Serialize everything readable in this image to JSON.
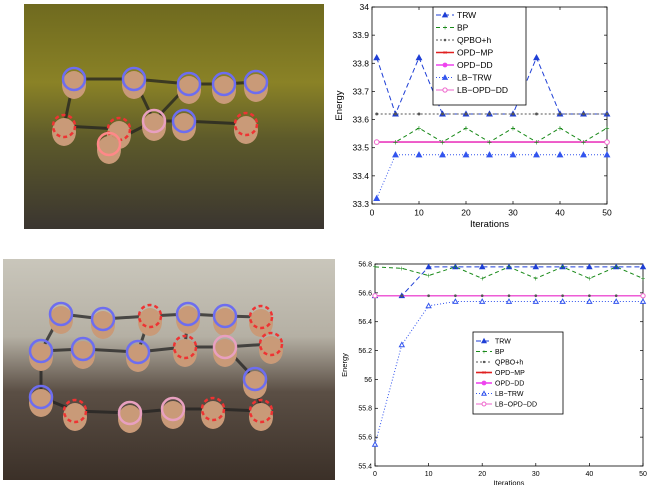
{
  "photos": [
    {
      "id": "top",
      "faces": [
        {
          "x": 50,
          "y": 75,
          "c": "#6d6df0",
          "d": false
        },
        {
          "x": 110,
          "y": 75,
          "c": "#6d6df0",
          "d": false
        },
        {
          "x": 165,
          "y": 80,
          "c": "#6d6df0",
          "d": false
        },
        {
          "x": 200,
          "y": 80,
          "c": "#6d6df0",
          "d": false
        },
        {
          "x": 232,
          "y": 78,
          "c": "#6d6df0",
          "d": false
        },
        {
          "x": 40,
          "y": 122,
          "c": "#e33",
          "d": true
        },
        {
          "x": 95,
          "y": 125,
          "c": "#e33",
          "d": true
        },
        {
          "x": 85,
          "y": 140,
          "c": "#ff8888",
          "d": false
        },
        {
          "x": 130,
          "y": 117,
          "c": "#e8a0c0",
          "d": false
        },
        {
          "x": 160,
          "y": 117,
          "c": "#6d6df0",
          "d": false
        },
        {
          "x": 222,
          "y": 120,
          "c": "#e33",
          "d": true
        }
      ],
      "edges": [
        [
          0,
          1
        ],
        [
          1,
          2
        ],
        [
          2,
          3
        ],
        [
          3,
          4
        ],
        [
          0,
          5
        ],
        [
          5,
          6
        ],
        [
          6,
          7
        ],
        [
          7,
          8
        ],
        [
          8,
          2
        ],
        [
          8,
          9
        ],
        [
          9,
          10
        ],
        [
          1,
          8
        ]
      ]
    },
    {
      "id": "bottom",
      "faces": [
        {
          "x": 58,
          "y": 55,
          "c": "#6d6df0",
          "d": false
        },
        {
          "x": 100,
          "y": 60,
          "c": "#6d6df0",
          "d": false
        },
        {
          "x": 147,
          "y": 57,
          "c": "#e33",
          "d": true
        },
        {
          "x": 185,
          "y": 55,
          "c": "#6d6df0",
          "d": false
        },
        {
          "x": 222,
          "y": 57,
          "c": "#6d6df0",
          "d": false
        },
        {
          "x": 258,
          "y": 58,
          "c": "#e33",
          "d": true
        },
        {
          "x": 38,
          "y": 92,
          "c": "#6d6df0",
          "d": false
        },
        {
          "x": 80,
          "y": 90,
          "c": "#6d6df0",
          "d": false
        },
        {
          "x": 135,
          "y": 93,
          "c": "#6d6df0",
          "d": false
        },
        {
          "x": 182,
          "y": 88,
          "c": "#e33",
          "d": true
        },
        {
          "x": 222,
          "y": 88,
          "c": "#e8a0c0",
          "d": false
        },
        {
          "x": 268,
          "y": 85,
          "c": "#e33",
          "d": true
        },
        {
          "x": 38,
          "y": 138,
          "c": "#6d6df0",
          "d": false
        },
        {
          "x": 252,
          "y": 120,
          "c": "#6d6df0",
          "d": false
        },
        {
          "x": 72,
          "y": 152,
          "c": "#e33",
          "d": true
        },
        {
          "x": 127,
          "y": 154,
          "c": "#e8a0c0",
          "d": false
        },
        {
          "x": 170,
          "y": 150,
          "c": "#e8a0c0",
          "d": false
        },
        {
          "x": 210,
          "y": 150,
          "c": "#e33",
          "d": true
        },
        {
          "x": 258,
          "y": 152,
          "c": "#e33",
          "d": true
        }
      ],
      "edges": [
        [
          0,
          1
        ],
        [
          1,
          2
        ],
        [
          2,
          3
        ],
        [
          3,
          4
        ],
        [
          4,
          5
        ],
        [
          0,
          6
        ],
        [
          6,
          7
        ],
        [
          7,
          8
        ],
        [
          8,
          9
        ],
        [
          9,
          10
        ],
        [
          10,
          11
        ],
        [
          6,
          12
        ],
        [
          12,
          14
        ],
        [
          14,
          15
        ],
        [
          15,
          16
        ],
        [
          16,
          17
        ],
        [
          17,
          18
        ],
        [
          10,
          13
        ],
        [
          13,
          18
        ],
        [
          2,
          8
        ],
        [
          3,
          9
        ]
      ]
    }
  ],
  "chart_data": [
    {
      "type": "line",
      "xlabel": "Iterations",
      "ylabel": "Energy",
      "xlim": [
        0,
        50
      ],
      "ylim": [
        33.3,
        34
      ],
      "xticks": [
        0,
        10,
        20,
        30,
        40,
        50
      ],
      "yticks": [
        33.3,
        33.4,
        33.5,
        33.6,
        33.7,
        33.8,
        33.9,
        34
      ],
      "legend_position": "top-right",
      "series": [
        {
          "name": "TRW",
          "color": "#1f3fd6",
          "dash": "5,3",
          "marker": "triangle-filled",
          "x": [
            1,
            5,
            10,
            15,
            20,
            25,
            30,
            35,
            40,
            45,
            50
          ],
          "y": [
            33.82,
            33.62,
            33.82,
            33.62,
            33.62,
            33.62,
            33.62,
            33.82,
            33.62,
            33.62,
            33.62
          ]
        },
        {
          "name": "BP",
          "color": "#1a8a1a",
          "dash": "4,3",
          "marker": "diamond",
          "x": [
            1,
            5,
            10,
            15,
            20,
            25,
            30,
            35,
            40,
            45,
            50
          ],
          "y": [
            33.52,
            33.52,
            33.57,
            33.52,
            33.57,
            33.52,
            33.57,
            33.52,
            33.57,
            33.52,
            33.57
          ]
        },
        {
          "name": "QPBO+h",
          "color": "#555555",
          "dash": "2,2",
          "marker": "dot",
          "x": [
            1,
            5,
            10,
            15,
            20,
            25,
            30,
            35,
            40,
            45,
            50
          ],
          "y": [
            33.62,
            33.62,
            33.62,
            33.62,
            33.62,
            33.62,
            33.62,
            33.62,
            33.62,
            33.62,
            33.62
          ]
        },
        {
          "name": "OPD−MP",
          "color": "#e02020",
          "dash": "",
          "marker": "none",
          "x": [
            1,
            50
          ],
          "y": [
            33.52,
            33.52
          ]
        },
        {
          "name": "OPD−DD",
          "color": "#ee44ee",
          "dash": "",
          "marker": "none",
          "x": [
            1,
            50
          ],
          "y": [
            33.52,
            33.52
          ]
        },
        {
          "name": "LB−TRW",
          "color": "#3355ee",
          "dash": "1,2",
          "marker": "triangle-filled",
          "x": [
            1,
            5,
            10,
            15,
            20,
            25,
            30,
            35,
            40,
            45,
            50
          ],
          "y": [
            33.32,
            33.475,
            33.475,
            33.475,
            33.475,
            33.475,
            33.475,
            33.475,
            33.475,
            33.475,
            33.475
          ]
        },
        {
          "name": "LB−OPD−DD",
          "color": "#ee66cc",
          "dash": "",
          "marker": "circle-open",
          "x": [
            1,
            50
          ],
          "y": [
            33.52,
            33.52
          ]
        }
      ]
    },
    {
      "type": "line",
      "xlabel": "Iterations",
      "ylabel": "Energy",
      "xlim": [
        0,
        50
      ],
      "ylim": [
        55.4,
        56.8
      ],
      "xticks": [
        0,
        10,
        20,
        30,
        40,
        50
      ],
      "yticks": [
        55.4,
        55.6,
        55.8,
        56,
        56.2,
        56.4,
        56.6,
        56.8
      ],
      "legend_position": "center-right",
      "series": [
        {
          "name": "TRW",
          "color": "#1f3fd6",
          "dash": "5,3",
          "marker": "triangle-filled",
          "x": [
            0,
            5,
            10,
            15,
            20,
            25,
            30,
            35,
            40,
            45,
            50
          ],
          "y": [
            56.58,
            56.58,
            56.78,
            56.78,
            56.78,
            56.78,
            56.78,
            56.78,
            56.78,
            56.78,
            56.78
          ]
        },
        {
          "name": "BP",
          "color": "#1a8a1a",
          "dash": "4,3",
          "marker": "diamond",
          "x": [
            0,
            5,
            10,
            15,
            20,
            25,
            30,
            35,
            40,
            45,
            50
          ],
          "y": [
            56.78,
            56.77,
            56.72,
            56.78,
            56.7,
            56.78,
            56.7,
            56.78,
            56.7,
            56.78,
            56.7
          ]
        },
        {
          "name": "QPBO+h",
          "color": "#555555",
          "dash": "2,2",
          "marker": "dot",
          "x": [
            0,
            5,
            10,
            15,
            20,
            25,
            30,
            35,
            40,
            45,
            50
          ],
          "y": [
            56.58,
            56.58,
            56.58,
            56.58,
            56.58,
            56.58,
            56.58,
            56.58,
            56.58,
            56.58,
            56.58
          ]
        },
        {
          "name": "OPD−MP",
          "color": "#e02020",
          "dash": "",
          "marker": "none",
          "x": [
            0,
            50
          ],
          "y": [
            56.58,
            56.58
          ]
        },
        {
          "name": "OPD−DD",
          "color": "#ee44ee",
          "dash": "",
          "marker": "none",
          "x": [
            0,
            50
          ],
          "y": [
            56.58,
            56.58
          ]
        },
        {
          "name": "LB−TRW",
          "color": "#3355ee",
          "dash": "1,2",
          "marker": "triangle-open",
          "x": [
            0,
            5,
            10,
            15,
            20,
            25,
            30,
            35,
            40,
            45,
            50
          ],
          "y": [
            55.55,
            56.24,
            56.51,
            56.54,
            56.54,
            56.54,
            56.54,
            56.54,
            56.54,
            56.54,
            56.54
          ]
        },
        {
          "name": "LB−OPD−DD",
          "color": "#ee66cc",
          "dash": "",
          "marker": "circle-open",
          "x": [
            0,
            50
          ],
          "y": [
            56.58,
            56.58
          ]
        }
      ]
    }
  ]
}
